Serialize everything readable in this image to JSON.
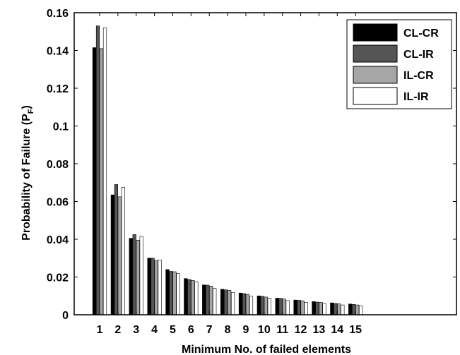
{
  "chart_data": {
    "type": "bar",
    "xlabel": "Minimum No. of failed elements",
    "ylabel_main": "Probability of Failure (P",
    "ylabel_sub": "F",
    "ylabel_close": ")",
    "ylim": [
      0,
      0.16
    ],
    "yticks": [
      0,
      0.02,
      0.04,
      0.06,
      0.08,
      0.1,
      0.12,
      0.14,
      0.16
    ],
    "ytick_labels": [
      "0",
      "0.02",
      "0.04",
      "0.06",
      "0.08",
      "0.1",
      "0.12",
      "0.14",
      "0.16"
    ],
    "categories": [
      "1",
      "2",
      "3",
      "4",
      "5",
      "6",
      "7",
      "8",
      "9",
      "10",
      "11",
      "12",
      "13",
      "14",
      "15"
    ],
    "legend_position": "top-right",
    "grid": false,
    "series": [
      {
        "name": "CL-CR",
        "color": "#000000",
        "values": [
          0.1415,
          0.0635,
          0.0405,
          0.03,
          0.024,
          0.0192,
          0.0158,
          0.0135,
          0.0115,
          0.01,
          0.0088,
          0.0078,
          0.007,
          0.0063,
          0.0057
        ]
      },
      {
        "name": "CL-IR",
        "color": "#555555",
        "values": [
          0.153,
          0.069,
          0.0425,
          0.03,
          0.023,
          0.0187,
          0.0157,
          0.0132,
          0.0112,
          0.0098,
          0.0087,
          0.0077,
          0.0067,
          0.006,
          0.0055
        ]
      },
      {
        "name": "IL-CR",
        "color": "#a6a6a6",
        "values": [
          0.141,
          0.0625,
          0.0395,
          0.0288,
          0.0228,
          0.0182,
          0.0152,
          0.013,
          0.0108,
          0.0094,
          0.0084,
          0.0074,
          0.0066,
          0.0058,
          0.0052
        ]
      },
      {
        "name": "IL-IR",
        "color": "#ffffff",
        "values": [
          0.152,
          0.0675,
          0.0415,
          0.029,
          0.0218,
          0.0175,
          0.014,
          0.0118,
          0.0098,
          0.0088,
          0.0075,
          0.0066,
          0.006,
          0.0052,
          0.0048
        ]
      }
    ]
  }
}
